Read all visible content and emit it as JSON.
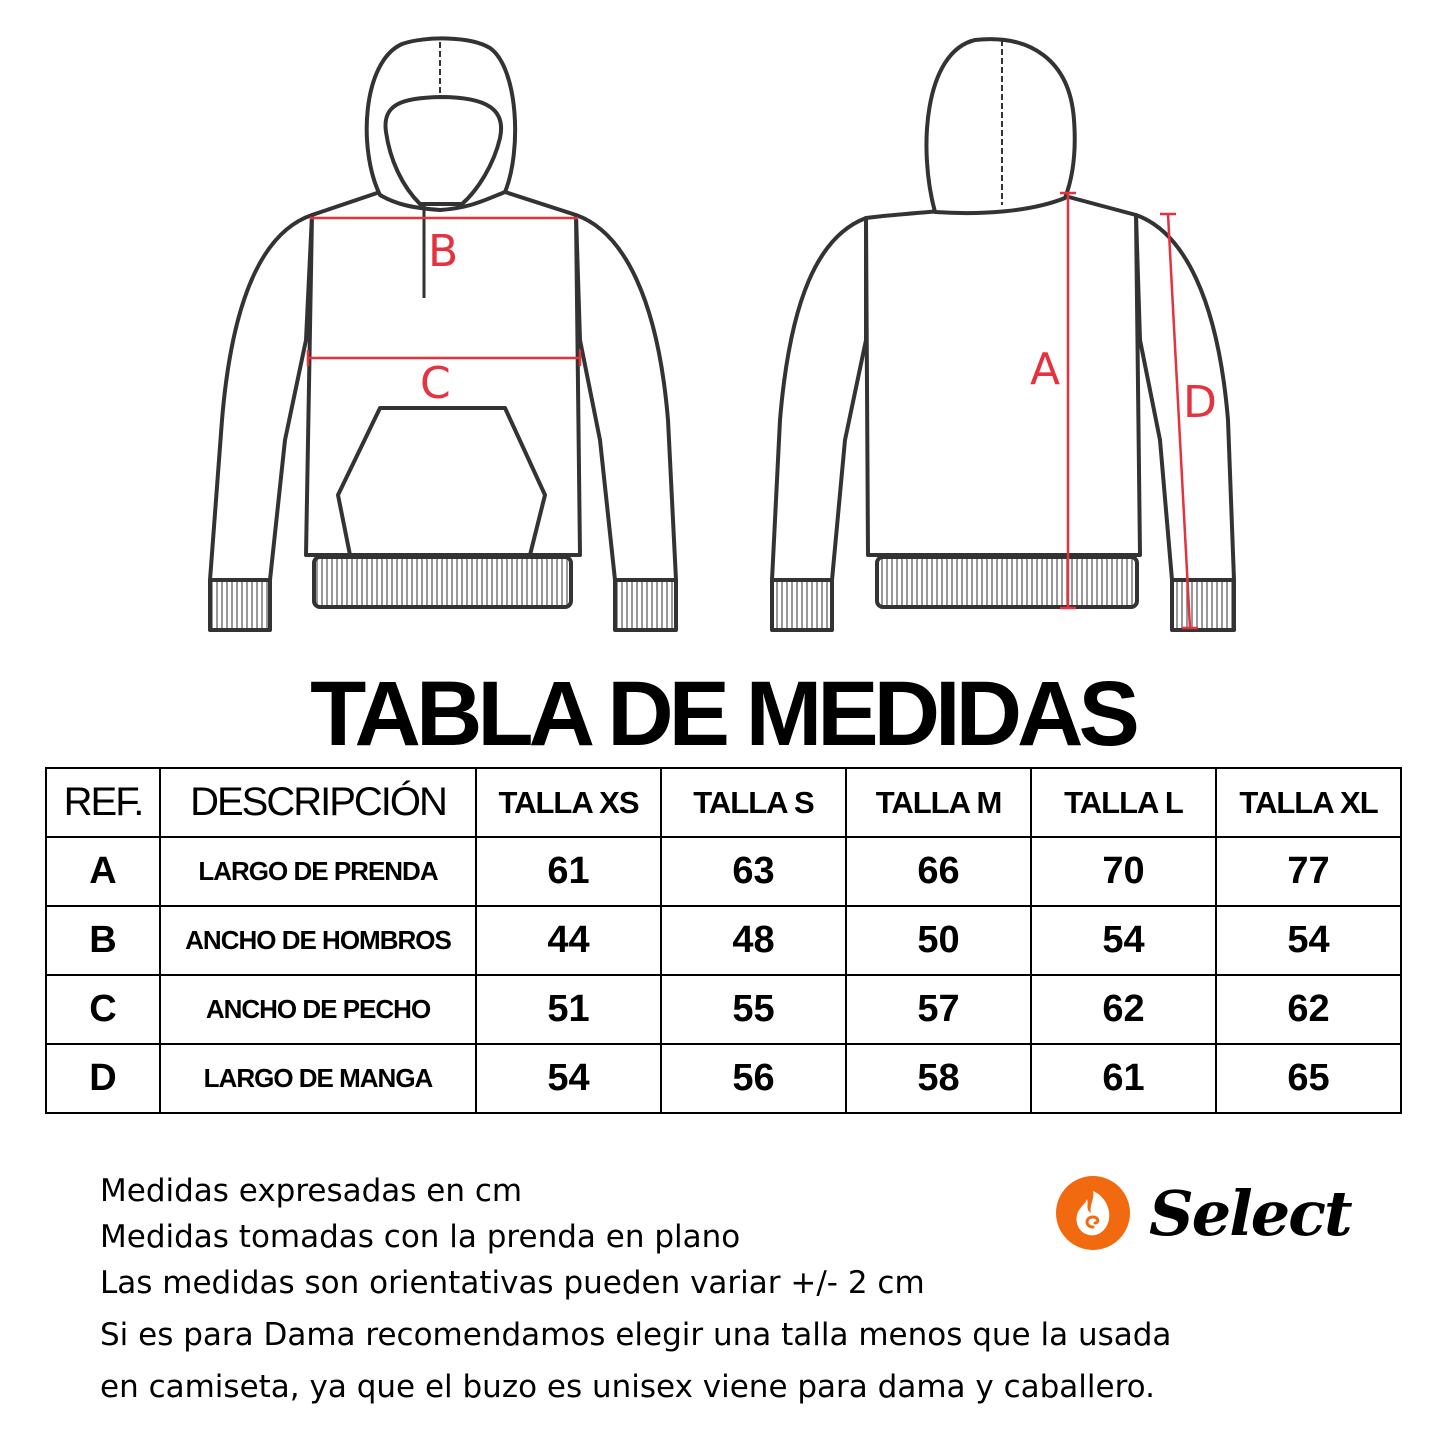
{
  "diagram": {
    "labels": {
      "a": "A",
      "b": "B",
      "c": "C",
      "d": "D"
    },
    "measure_color": "#e4323e",
    "outline_color": "#333333"
  },
  "title": "TABLA DE MEDIDAS",
  "table": {
    "headers": [
      "REF.",
      "DESCRIPCIÓN",
      "TALLA XS",
      "TALLA S",
      "TALLA M",
      "TALLA L",
      "TALLA XL"
    ],
    "rows": [
      {
        "ref": "A",
        "desc": "LARGO DE PRENDA",
        "values": [
          "61",
          "63",
          "66",
          "70",
          "77"
        ]
      },
      {
        "ref": "B",
        "desc": "ANCHO DE HOMBROS",
        "values": [
          "44",
          "48",
          "50",
          "54",
          "54"
        ]
      },
      {
        "ref": "C",
        "desc": "ANCHO DE PECHO",
        "values": [
          "51",
          "55",
          "57",
          "62",
          "62"
        ]
      },
      {
        "ref": "D",
        "desc": "LARGO DE MANGA",
        "values": [
          "54",
          "56",
          "58",
          "61",
          "65"
        ]
      }
    ]
  },
  "notes": [
    "Medidas expresadas en cm",
    "Medidas tomadas con la prenda en plano",
    "Las medidas son orientativas pueden variar +/- 2 cm",
    "Si es para Dama recomendamos elegir una talla menos que la usada",
    "en camiseta, ya que el buzo es unisex viene para dama y caballero."
  ],
  "logo": {
    "text": "Select",
    "color": "#f26a10"
  }
}
